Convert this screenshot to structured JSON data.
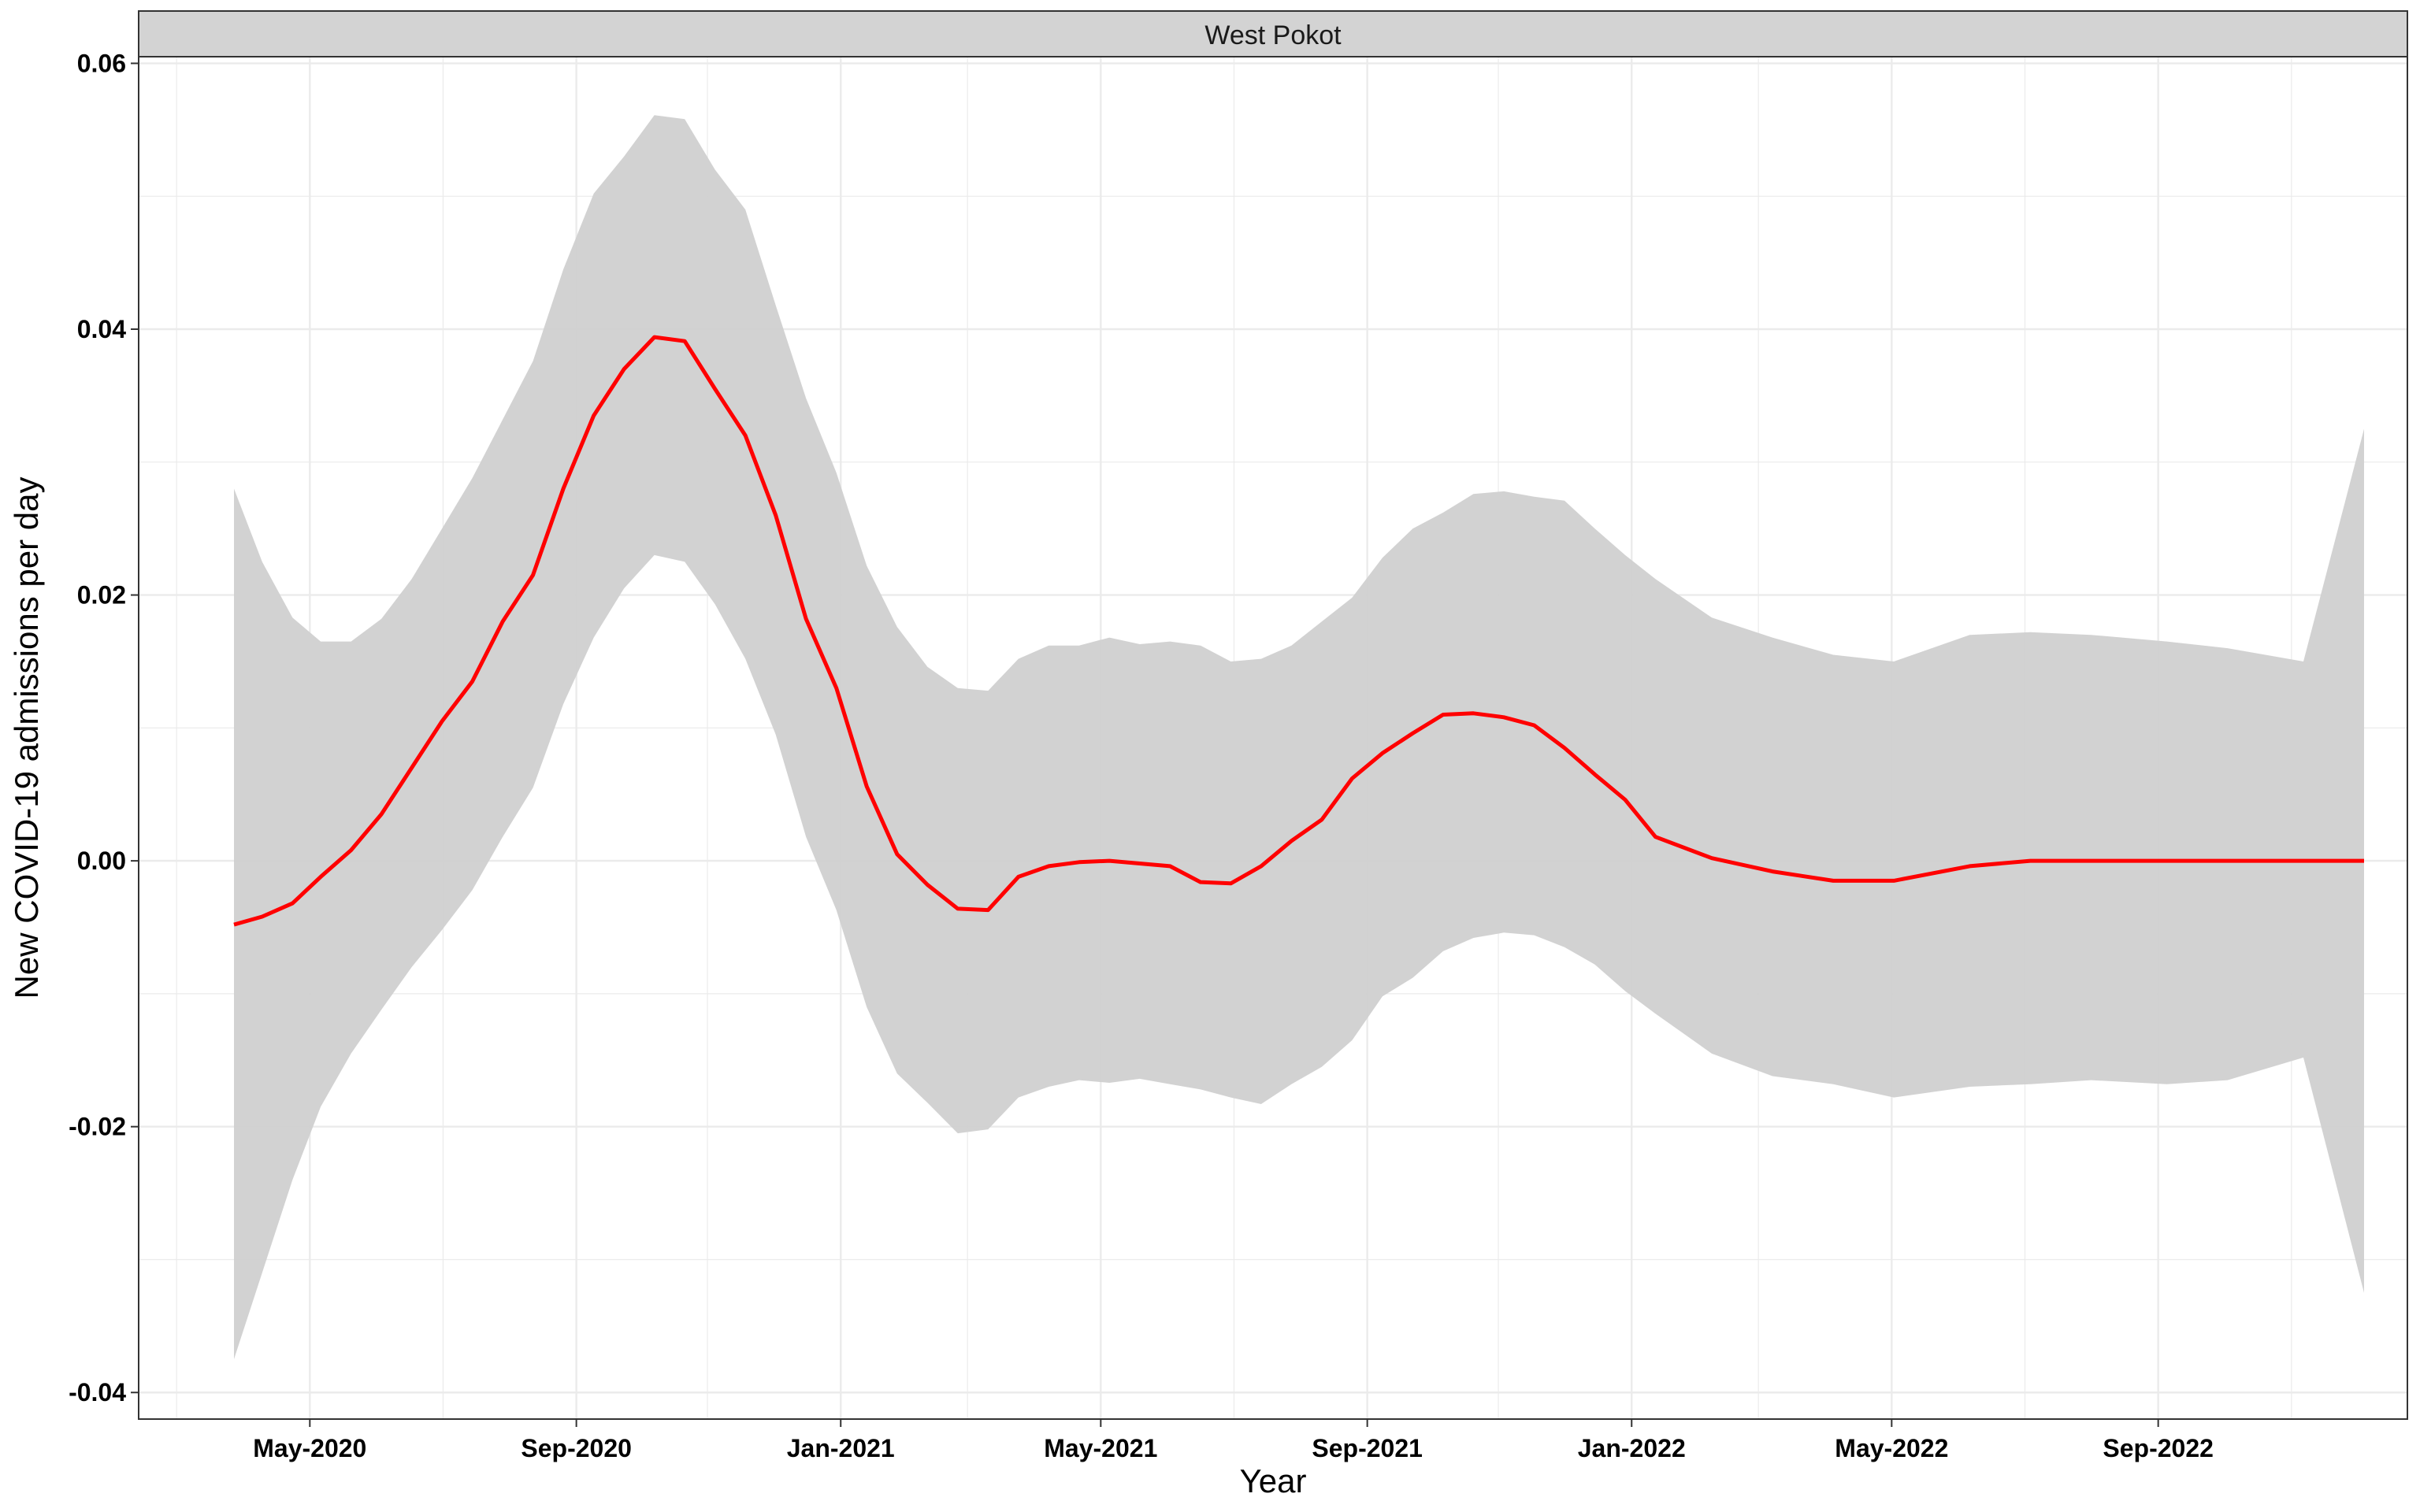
{
  "chart_data": {
    "type": "line",
    "facet_label": "West Pokot",
    "title": "",
    "xlabel": "Year",
    "ylabel": "New COVID-19 admissions per day",
    "xlim": [
      "2020-02-12",
      "2022-12-25"
    ],
    "ylim": [
      -0.042,
      0.0605
    ],
    "x_ticks": [
      {
        "date": "2020-05-01",
        "label": "May-2020"
      },
      {
        "date": "2020-09-01",
        "label": "Sep-2020"
      },
      {
        "date": "2021-01-01",
        "label": "Jan-2021"
      },
      {
        "date": "2021-05-01",
        "label": "May-2021"
      },
      {
        "date": "2021-09-01",
        "label": "Sep-2021"
      },
      {
        "date": "2022-01-01",
        "label": "Jan-2022"
      },
      {
        "date": "2022-05-01",
        "label": "May-2022"
      },
      {
        "date": "2022-09-01",
        "label": "Sep-2022"
      }
    ],
    "y_ticks": [
      {
        "value": 0.06,
        "label": "0.06"
      },
      {
        "value": 0.04,
        "label": "0.04"
      },
      {
        "value": 0.02,
        "label": "0.02"
      },
      {
        "value": 0.0,
        "label": "0.00"
      },
      {
        "value": -0.02,
        "label": "-0.02"
      },
      {
        "value": -0.04,
        "label": "-0.04"
      }
    ],
    "grid": true,
    "colors": {
      "line": "#ff0000",
      "ribbon": "#d0d0d0",
      "strip": "#d3d3d3",
      "grid": "#ebebeb"
    },
    "series": [
      {
        "x": [
          "2020-03-27",
          "2020-04-09",
          "2020-04-23",
          "2020-05-06",
          "2020-05-20",
          "2020-06-03",
          "2020-06-17",
          "2020-07-01",
          "2020-07-15",
          "2020-07-29",
          "2020-08-12",
          "2020-08-26",
          "2020-09-09",
          "2020-09-23",
          "2020-10-07",
          "2020-10-21",
          "2020-11-04",
          "2020-11-18",
          "2020-12-02",
          "2020-12-16",
          "2020-12-30",
          "2021-01-13",
          "2021-01-27",
          "2021-02-10",
          "2021-02-24",
          "2021-03-10",
          "2021-03-24",
          "2021-04-07",
          "2021-04-21",
          "2021-05-05",
          "2021-05-19",
          "2021-06-02",
          "2021-06-16",
          "2021-06-30",
          "2021-07-14",
          "2021-07-28",
          "2021-08-11",
          "2021-08-25",
          "2021-09-08",
          "2021-09-22",
          "2021-10-06",
          "2021-10-20",
          "2021-11-03",
          "2021-11-17",
          "2021-12-01",
          "2021-12-15",
          "2021-12-29",
          "2022-01-12",
          "2022-02-07",
          "2022-03-07",
          "2022-04-04",
          "2022-05-02",
          "2022-06-06",
          "2022-07-04",
          "2022-08-01",
          "2022-09-05",
          "2022-10-03",
          "2022-11-07",
          "2022-12-05"
        ],
        "mean": [
          -0.0048,
          -0.0042,
          -0.0032,
          -0.0012,
          0.0008,
          0.0035,
          0.007,
          0.0105,
          0.0135,
          0.018,
          0.0215,
          0.028,
          0.0335,
          0.037,
          0.0394,
          0.0391,
          0.0355,
          0.032,
          0.026,
          0.0182,
          0.013,
          0.0056,
          0.0005,
          -0.0018,
          -0.0036,
          -0.0037,
          -0.0012,
          -0.0004,
          -0.0001,
          0.0,
          -0.0002,
          -0.0004,
          -0.0016,
          -0.0017,
          -0.0004,
          0.0015,
          0.0031,
          0.0062,
          0.0081,
          0.0096,
          0.011,
          0.0111,
          0.0108,
          0.0102,
          0.0085,
          0.0065,
          0.0046,
          0.0018,
          0.0002,
          -0.0008,
          -0.0015,
          -0.0015,
          -0.0004,
          0.0,
          0.0,
          0.0,
          0.0,
          0.0,
          0.0
        ],
        "lower": [
          -0.0375,
          -0.031,
          -0.024,
          -0.0185,
          -0.0145,
          -0.0112,
          -0.008,
          -0.0052,
          -0.0022,
          0.0018,
          0.0055,
          0.0118,
          0.0168,
          0.0205,
          0.023,
          0.0225,
          0.0193,
          0.0152,
          0.0095,
          0.0018,
          -0.0037,
          -0.011,
          -0.016,
          -0.0182,
          -0.0205,
          -0.0202,
          -0.0178,
          -0.017,
          -0.0165,
          -0.0167,
          -0.0164,
          -0.0168,
          -0.0172,
          -0.0178,
          -0.0183,
          -0.0168,
          -0.0155,
          -0.0135,
          -0.0102,
          -0.0088,
          -0.0068,
          -0.0058,
          -0.0054,
          -0.0056,
          -0.0065,
          -0.0078,
          -0.0098,
          -0.0115,
          -0.0145,
          -0.0162,
          -0.0168,
          -0.0178,
          -0.017,
          -0.0168,
          -0.0165,
          -0.0168,
          -0.0165,
          -0.0148,
          -0.0325
        ],
        "upper": [
          0.028,
          0.0225,
          0.0183,
          0.0165,
          0.0165,
          0.0182,
          0.0212,
          0.025,
          0.0288,
          0.0332,
          0.0376,
          0.0445,
          0.0502,
          0.053,
          0.0561,
          0.0558,
          0.052,
          0.049,
          0.0418,
          0.0348,
          0.0292,
          0.0222,
          0.0176,
          0.0146,
          0.013,
          0.0128,
          0.0152,
          0.0162,
          0.0162,
          0.0168,
          0.0163,
          0.0165,
          0.0162,
          0.015,
          0.0152,
          0.0162,
          0.018,
          0.0198,
          0.0228,
          0.025,
          0.0262,
          0.0276,
          0.0278,
          0.0274,
          0.0271,
          0.025,
          0.023,
          0.0212,
          0.0183,
          0.0168,
          0.0155,
          0.015,
          0.017,
          0.0172,
          0.017,
          0.0165,
          0.016,
          0.015,
          0.0325
        ]
      }
    ]
  }
}
